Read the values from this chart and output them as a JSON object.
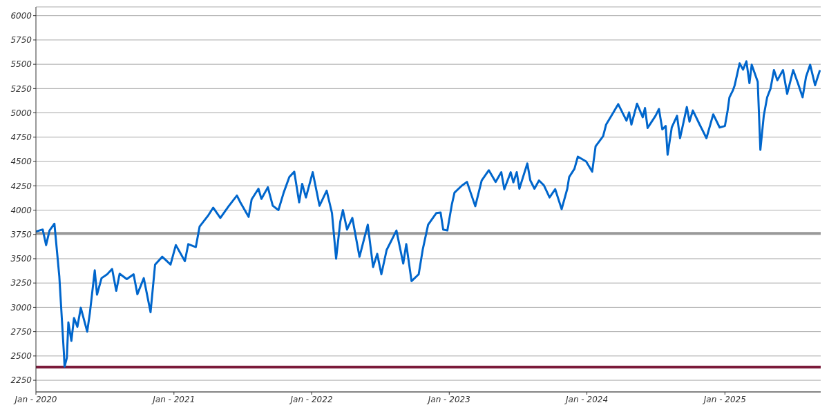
{
  "chart_data": {
    "type": "line",
    "x": [
      "2020-01-01",
      "2020-01-19",
      "2020-01-28",
      "2020-02-06",
      "2020-02-19",
      "2020-02-26",
      "2020-03-03",
      "2020-03-15",
      "2020-03-17",
      "2020-03-23",
      "2020-03-27",
      "2020-04-04",
      "2020-04-11",
      "2020-04-20",
      "2020-04-29",
      "2020-05-16",
      "2020-05-23",
      "2020-06-05",
      "2020-06-11",
      "2020-06-23",
      "2020-07-08",
      "2020-07-21",
      "2020-08-01",
      "2020-08-10",
      "2020-08-29",
      "2020-09-16",
      "2020-09-26",
      "2020-10-13",
      "2020-10-31",
      "2020-11-12",
      "2020-12-01",
      "2020-12-23",
      "2021-01-06",
      "2021-01-30",
      "2021-02-08",
      "2021-02-28",
      "2021-03-10",
      "2021-04-01",
      "2021-04-15",
      "2021-05-04",
      "2021-05-26",
      "2021-06-17",
      "2021-06-26",
      "2021-07-18",
      "2021-07-26",
      "2021-08-13",
      "2021-08-21",
      "2021-09-07",
      "2021-09-20",
      "2021-10-05",
      "2021-10-19",
      "2021-11-03",
      "2021-11-16",
      "2021-11-29",
      "2021-12-07",
      "2021-12-17",
      "2022-01-04",
      "2022-01-22",
      "2022-02-10",
      "2022-02-24",
      "2022-03-07",
      "2022-03-18",
      "2022-03-25",
      "2022-04-05",
      "2022-04-19",
      "2022-05-08",
      "2022-05-30",
      "2022-06-13",
      "2022-06-24",
      "2022-07-05",
      "2022-07-19",
      "2022-08-14",
      "2022-09-01",
      "2022-09-09",
      "2022-09-23",
      "2022-10-12",
      "2022-10-23",
      "2022-11-06",
      "2022-11-28",
      "2022-12-09",
      "2022-12-16",
      "2022-12-27",
      "2023-01-08",
      "2023-01-15",
      "2023-02-03",
      "2023-02-17",
      "2023-03-11",
      "2023-03-28",
      "2023-04-16",
      "2023-05-04",
      "2023-05-19",
      "2023-05-27",
      "2023-06-13",
      "2023-06-20",
      "2023-06-29",
      "2023-07-06",
      "2023-07-27",
      "2023-08-04",
      "2023-08-15",
      "2023-08-27",
      "2023-09-09",
      "2023-09-24",
      "2023-10-09",
      "2023-10-26",
      "2023-11-10",
      "2023-11-15",
      "2023-11-29",
      "2023-12-08",
      "2023-12-30",
      "2024-01-15",
      "2024-01-24",
      "2024-02-13",
      "2024-02-21",
      "2024-03-06",
      "2024-03-24",
      "2024-04-15",
      "2024-04-22",
      "2024-04-28",
      "2024-05-13",
      "2024-05-28",
      "2024-06-03",
      "2024-06-10",
      "2024-07-01",
      "2024-07-10",
      "2024-07-19",
      "2024-07-28",
      "2024-08-02",
      "2024-08-13",
      "2024-08-27",
      "2024-09-04",
      "2024-09-22",
      "2024-09-29",
      "2024-10-08",
      "2024-10-26",
      "2024-11-13",
      "2024-12-01",
      "2024-12-18",
      "2025-01-01",
      "2025-01-08",
      "2025-01-13",
      "2025-01-22",
      "2025-01-27",
      "2025-02-09",
      "2025-02-18",
      "2025-02-27",
      "2025-03-07",
      "2025-03-13",
      "2025-03-29",
      "2025-04-05",
      "2025-04-14",
      "2025-04-23",
      "2025-05-02",
      "2025-05-11",
      "2025-05-20",
      "2025-06-04",
      "2025-06-15",
      "2025-07-01",
      "2025-07-14",
      "2025-07-26",
      "2025-08-04",
      "2025-08-15",
      "2025-08-28",
      "2025-09-10"
    ],
    "series": [
      {
        "color": "#0066cc",
        "values": [
          3780,
          3800,
          3640,
          3790,
          3860,
          3570,
          3320,
          2540,
          2390,
          2480,
          2845,
          2655,
          2890,
          2800,
          2995,
          2750,
          2940,
          3380,
          3130,
          3300,
          3340,
          3395,
          3170,
          3345,
          3290,
          3340,
          3135,
          3300,
          2950,
          3440,
          3520,
          3440,
          3640,
          3475,
          3650,
          3620,
          3830,
          3940,
          4025,
          3920,
          4040,
          4150,
          4080,
          3930,
          4110,
          4220,
          4115,
          4235,
          4045,
          4000,
          4180,
          4340,
          4395,
          4080,
          4270,
          4130,
          4390,
          4045,
          4200,
          3970,
          3500,
          3880,
          4000,
          3800,
          3920,
          3520,
          3850,
          3415,
          3550,
          3340,
          3590,
          3790,
          3450,
          3650,
          3270,
          3340,
          3600,
          3850,
          3970,
          3975,
          3800,
          3790,
          4060,
          4180,
          4250,
          4290,
          4040,
          4305,
          4410,
          4290,
          4390,
          4215,
          4390,
          4285,
          4390,
          4220,
          4480,
          4305,
          4220,
          4305,
          4255,
          4130,
          4215,
          4010,
          4220,
          4340,
          4425,
          4550,
          4500,
          4395,
          4655,
          4760,
          4880,
          4970,
          5090,
          4920,
          5005,
          4880,
          5095,
          4955,
          5050,
          4845,
          4970,
          5040,
          4830,
          4865,
          4570,
          4850,
          4970,
          4740,
          5060,
          4910,
          5025,
          4880,
          4740,
          4985,
          4850,
          4865,
          5020,
          5160,
          5230,
          5285,
          5510,
          5445,
          5530,
          5305,
          5495,
          5320,
          4620,
          4970,
          5160,
          5250,
          5440,
          5335,
          5440,
          5195,
          5440,
          5300,
          5160,
          5370,
          5495,
          5285,
          5440
        ]
      }
    ],
    "xlim": [
      "2020-01-01",
      "2025-09-12"
    ],
    "xticks": [
      {
        "value": "2020-01-01",
        "label": "Jan - 2020"
      },
      {
        "value": "2021-01-01",
        "label": "Jan - 2021"
      },
      {
        "value": "2022-01-01",
        "label": "Jan - 2022"
      },
      {
        "value": "2023-01-01",
        "label": "Jan - 2023"
      },
      {
        "value": "2024-01-01",
        "label": "Jan - 2024"
      },
      {
        "value": "2025-01-01",
        "label": "Jan - 2025"
      }
    ],
    "ylim": [
      2130,
      6090
    ],
    "yticks": [
      2250,
      2500,
      2750,
      3000,
      3250,
      3500,
      3750,
      4000,
      4250,
      4500,
      4750,
      5000,
      5250,
      5500,
      5750,
      6000
    ],
    "grid": "y",
    "ref_lines": [
      {
        "axis": "y",
        "value": 3760,
        "color": "#999999"
      },
      {
        "axis": "y",
        "value": 2385,
        "color": "#7b1a3a"
      }
    ]
  }
}
